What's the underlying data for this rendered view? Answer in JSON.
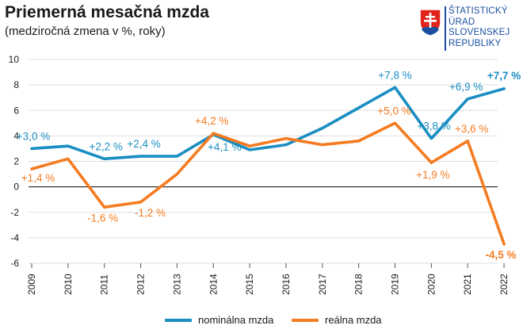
{
  "header": {
    "title": "Priemerná mesačná mzda",
    "subtitle": "(medziročná zmena v %, roky)"
  },
  "logo": {
    "icon": "slovak-coat-of-arms",
    "lines": [
      "ŠTATISTICKÝ",
      "ÚRAD",
      "SLOVENSKEJ",
      "REPUBLIKY"
    ]
  },
  "colors": {
    "nominal": "#1a8ec2",
    "real": "#f47b20",
    "axis_text": "#1a1a1a",
    "grid": "#dddddd",
    "zero_line": "#333333"
  },
  "chart_data": {
    "type": "line",
    "x": [
      "2009",
      "2010",
      "2011",
      "2012",
      "2013",
      "2014",
      "2015",
      "2016",
      "2017",
      "2018",
      "2019",
      "2020",
      "2021",
      "2022"
    ],
    "ylim": [
      -6,
      10
    ],
    "yticks": [
      -6,
      -4,
      -2,
      0,
      2,
      4,
      6,
      8,
      10
    ],
    "grid": true,
    "legend_position": "bottom",
    "title": "Priemerná mesačná mzda",
    "subtitle": "(medziročná zmena v %, roky)",
    "series": [
      {
        "key": "nominal",
        "name": "nominálna mzda",
        "values": [
          3.0,
          3.2,
          2.2,
          2.4,
          2.4,
          4.1,
          2.9,
          3.3,
          4.6,
          6.2,
          7.8,
          3.8,
          6.9,
          7.7
        ],
        "labels": [
          "+3,0 %",
          "",
          "+2,2 %",
          "+2,4 %",
          "",
          "+4,1 %",
          "",
          "",
          "",
          "",
          "+7,8 %",
          "+3,8 %",
          "+6,9 %",
          "+7,7 %"
        ]
      },
      {
        "key": "real",
        "name": "reálna mzda",
        "values": [
          1.4,
          2.2,
          -1.6,
          -1.2,
          1.0,
          4.2,
          3.2,
          3.8,
          3.3,
          3.6,
          5.0,
          1.9,
          3.6,
          -4.5
        ],
        "labels": [
          "+1,4 %",
          "",
          "-1,6 %",
          "-1,2 %",
          "",
          "+4,2 %",
          "",
          "",
          "",
          "",
          "+5,0 %",
          "+1,9 %",
          "+3,6 %",
          "-4,5 %"
        ]
      }
    ]
  }
}
